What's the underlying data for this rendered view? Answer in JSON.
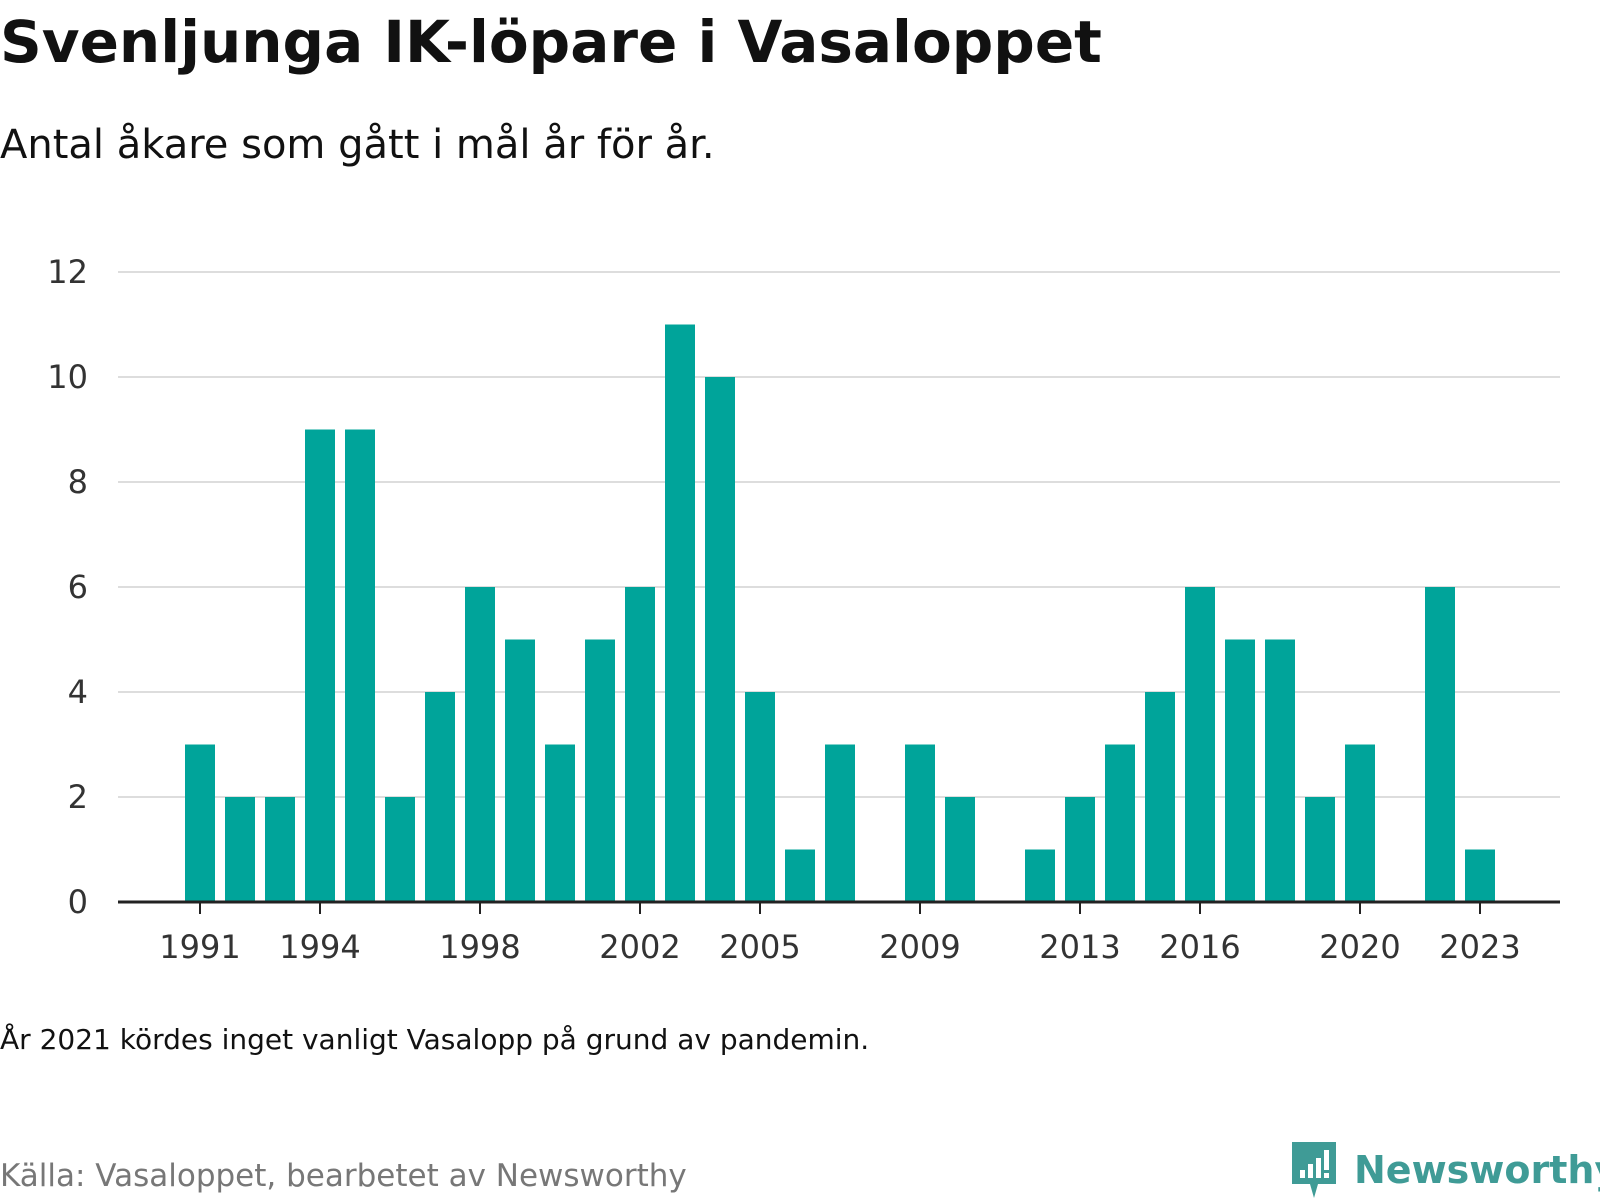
{
  "title": "Svenljunga IK-löpare i Vasaloppet",
  "subtitle": "Antal åkare som gått i mål år för år.",
  "note": "År 2021 kördes inget vanligt Vasalopp på grund av pandemin.",
  "source": "Källa: Vasaloppet, bearbetet av Newsworthy",
  "brand": {
    "name": "Newsworthy",
    "icon": "newsworthy-logo-icon",
    "color": "#3f9b96"
  },
  "colors": {
    "bar": "#00a49a",
    "grid": "#dddddd",
    "axis": "#222222"
  },
  "chart_data": {
    "type": "bar",
    "x": [
      1991,
      1992,
      1993,
      1994,
      1995,
      1996,
      1997,
      1998,
      1999,
      2000,
      2001,
      2002,
      2003,
      2004,
      2005,
      2006,
      2007,
      2008,
      2009,
      2010,
      2011,
      2012,
      2013,
      2014,
      2015,
      2016,
      2017,
      2018,
      2019,
      2020,
      2021,
      2022,
      2023
    ],
    "values": [
      3,
      2,
      2,
      9,
      9,
      2,
      4,
      6,
      5,
      3,
      5,
      6,
      11,
      10,
      4,
      1,
      3,
      0,
      3,
      2,
      0,
      1,
      2,
      3,
      4,
      6,
      5,
      5,
      2,
      3,
      0,
      6,
      1
    ],
    "x_ticks": [
      1991,
      1994,
      1998,
      2002,
      2005,
      2009,
      2013,
      2016,
      2020,
      2023
    ],
    "y_ticks": [
      0,
      2,
      4,
      6,
      8,
      10,
      12
    ],
    "ylim": [
      0,
      12
    ],
    "grid": true,
    "legend": "none"
  }
}
